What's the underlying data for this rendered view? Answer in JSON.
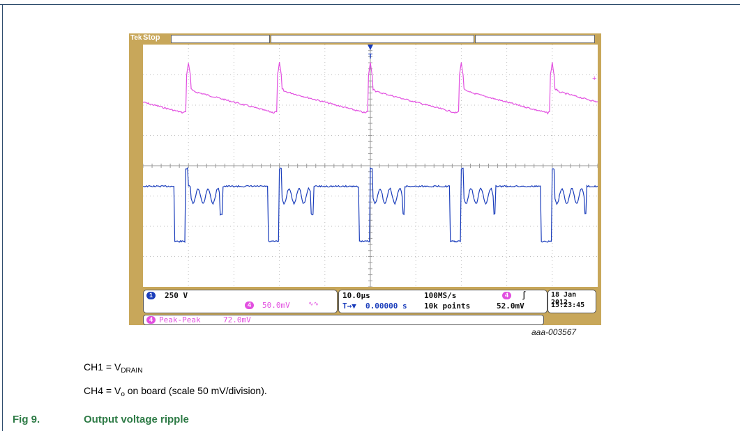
{
  "oscilloscope": {
    "brand": "Tek",
    "status": "Stop",
    "trigger_marker": "T",
    "ch1_scale": "250 V",
    "ch4_scale": "50.0mV",
    "ch4_bw": "∿∿",
    "timebase": "10.0µs",
    "sample_rate": "100MS/s",
    "delay": "0.00000 s",
    "record_length": "10k points",
    "trigger_level": "52.0mV",
    "trigger_edge": "∫",
    "date": "18 Jan  2012",
    "time": "15:23:45",
    "measurement_label": "Peak-Peak",
    "measurement_value": "72.0mV",
    "ch1_label": "1",
    "ch4_label": "4",
    "colors": {
      "ch1": "#1a3dbb",
      "ch4": "#e24fe0",
      "bezel": "#c8a75a"
    }
  },
  "image_code": "aaa-003567",
  "caption": {
    "line1_prefix": "CH1 = V",
    "line1_sub": "DRAIN",
    "line2_prefix": "CH4 = V",
    "line2_sub": "o",
    "line2_suffix": " on board (scale 50 mV/division)."
  },
  "figure": {
    "number": "Fig 9.",
    "title": "Output voltage ripple"
  },
  "chart_data": {
    "type": "line",
    "title": "",
    "grid": true,
    "divisions_x": 10,
    "divisions_y": 8,
    "series": [
      {
        "name": "CH4",
        "color": "#e24fe0",
        "description_units": "divisions",
        "period_divisions": 2.0,
        "spike_times_div": [
          1.0,
          3.0,
          5.0,
          7.0,
          9.0
        ],
        "baseline_start_div": 1.5,
        "baseline_end_div": 2.3,
        "spike_peak_div": 0.6
      },
      {
        "name": "CH1",
        "color": "#1a3dbb",
        "description_units": "divisions",
        "high_level_div": 4.6,
        "low_level_div": 6.5,
        "ripple_level_div": 5.0,
        "low_intervals_div": [
          [
            0.7,
            0.95
          ],
          [
            2.75,
            3.0
          ],
          [
            4.75,
            5.0
          ],
          [
            6.75,
            7.0
          ],
          [
            8.75,
            9.0
          ]
        ]
      }
    ]
  }
}
